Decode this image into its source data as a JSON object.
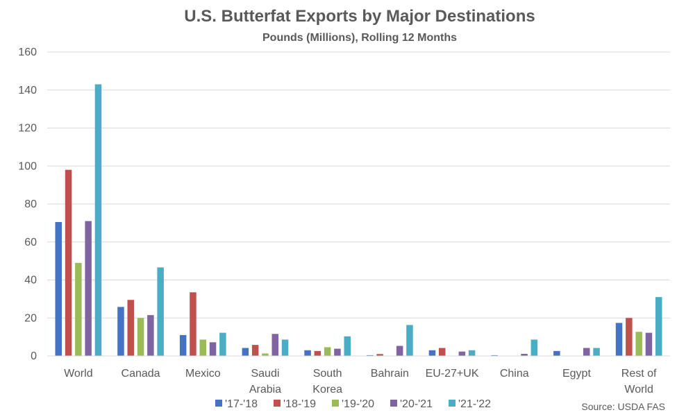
{
  "chart_data": {
    "type": "bar",
    "title": "U.S. Butterfat Exports by Major Destinations",
    "subtitle": "Pounds (Millions), Rolling 12 Months",
    "source": "Source: USDA FAS",
    "categories": [
      [
        "World"
      ],
      [
        "Canada"
      ],
      [
        "Mexico"
      ],
      [
        "Saudi",
        "Arabia"
      ],
      [
        "South",
        "Korea"
      ],
      [
        "Bahrain"
      ],
      [
        "EU-27+UK"
      ],
      [
        "China"
      ],
      [
        "Egypt"
      ],
      [
        "Rest of",
        "World"
      ]
    ],
    "series": [
      {
        "name": "'17-'18",
        "color": "#4472C4",
        "values": [
          70.5,
          25.8,
          11.0,
          4.2,
          3.0,
          0.4,
          3.0,
          0.4,
          2.6,
          17.4
        ]
      },
      {
        "name": "'18-'19",
        "color": "#C0504D",
        "values": [
          98.0,
          29.5,
          33.5,
          5.8,
          2.6,
          1.0,
          4.2,
          0.0,
          0.0,
          20.0
        ]
      },
      {
        "name": "'19-'20",
        "color": "#9BBB59",
        "values": [
          49.0,
          20.0,
          8.6,
          1.3,
          4.6,
          0.0,
          0.0,
          0.0,
          0.0,
          12.7
        ]
      },
      {
        "name": "'20-'21",
        "color": "#8064A2",
        "values": [
          71.0,
          21.5,
          7.2,
          11.6,
          3.8,
          5.3,
          2.3,
          1.1,
          4.2,
          12.2
        ]
      },
      {
        "name": "'21-'22",
        "color": "#4BACC6",
        "values": [
          143.0,
          46.6,
          12.2,
          8.6,
          10.3,
          16.3,
          3.0,
          8.6,
          4.2,
          31.0
        ]
      }
    ],
    "ylim": [
      0,
      160
    ],
    "yticks": [
      0,
      20,
      40,
      60,
      80,
      100,
      120,
      140,
      160
    ],
    "grid": true,
    "legend_position": "bottom"
  }
}
